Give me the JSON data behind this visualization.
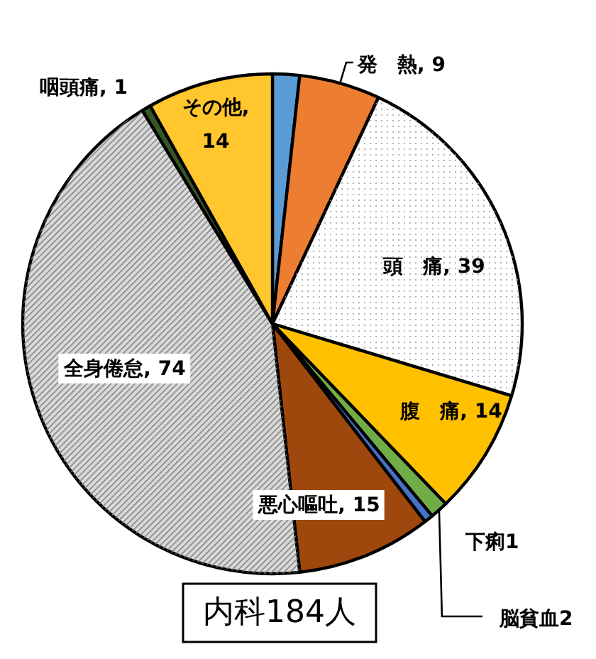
{
  "chart_data": {
    "type": "pie",
    "title": "内科184人",
    "categories": [
      null,
      "発　熱, 9",
      "頭　痛, 39",
      "腹　痛, 14",
      "脳貧血2",
      "下痢1",
      "悪心嘔吐, 15",
      "全身倦怠, 74",
      "咽頭痛, 1",
      "その他, 14"
    ],
    "values": [
      3,
      9,
      39,
      14,
      2,
      1,
      15,
      74,
      1,
      14
    ],
    "colors": [
      "#5b9bd5",
      "#ed7d31",
      "#ffffff",
      "#ffc000",
      "#70ad47",
      "#4472c4",
      "#9e480e",
      "#d9d9d9",
      "#375623",
      "#ffc62e"
    ]
  }
}
